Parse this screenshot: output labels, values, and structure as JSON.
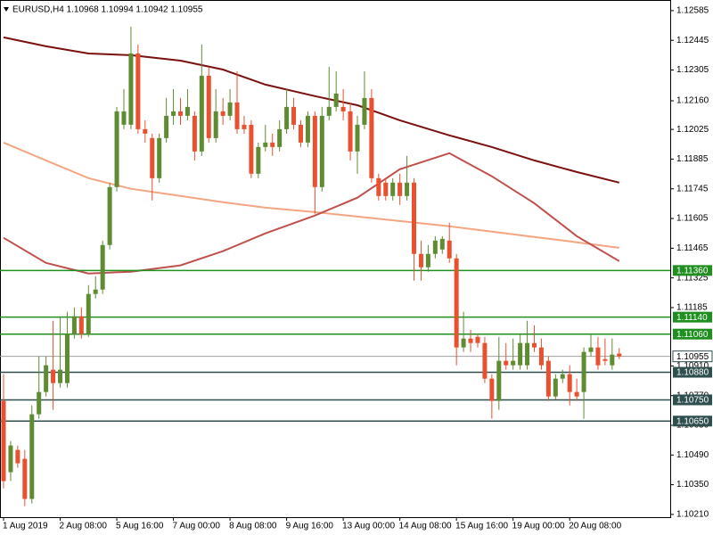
{
  "chart_data": {
    "type": "candlestick",
    "title": "EURUSD,H4  1.10968 1.10994 1.10942 1.10955",
    "categories": [
      "1 Aug 2019",
      null,
      null,
      null,
      null,
      null,
      null,
      null,
      "2 Aug 08:00",
      null,
      null,
      null,
      null,
      null,
      null,
      null,
      "5 Aug 16:00",
      null,
      null,
      null,
      null,
      null,
      null,
      null,
      "7 Aug 00:00",
      null,
      null,
      null,
      null,
      null,
      null,
      null,
      "8 Aug 08:00",
      null,
      null,
      null,
      null,
      null,
      null,
      null,
      "9 Aug 16:00",
      null,
      null,
      null,
      null,
      null,
      null,
      null,
      "13 Aug 00:00",
      null,
      null,
      null,
      null,
      null,
      null,
      null,
      "14 Aug 08:00",
      null,
      null,
      null,
      null,
      null,
      null,
      null,
      "15 Aug 16:00",
      null,
      null,
      null,
      null,
      null,
      null,
      null,
      "19 Aug 00:00",
      null,
      null,
      null,
      null,
      null,
      null,
      null,
      "20 Aug 08:00",
      null,
      null,
      null,
      null,
      null,
      null,
      null
    ],
    "open": [
      1.10745,
      1.10409,
      1.10514,
      1.10472,
      1.10283,
      1.10682,
      1.10787,
      1.10892,
      1.10829,
      1.10829,
      1.1106,
      1.11144,
      1.1106,
      1.11249,
      1.1127,
      1.1148,
      1.11753,
      1.12047,
      1.12047,
      1.12383,
      1.12026,
      1.11984,
      1.11795,
      1.11984,
      1.12089,
      1.1211,
      1.12089,
      1.12089,
      1.11921,
      1.12278,
      1.11984,
      1.1211,
      1.12089,
      1.12152,
      1.12047,
      1.12047,
      1.11816,
      1.11942,
      1.11963,
      1.11942,
      1.12026,
      1.12131,
      1.12047,
      1.11963,
      1.12089,
      1.11753,
      1.12089,
      1.12131,
      1.12131,
      1.1211,
      1.11921,
      1.12047,
      1.12173,
      1.11795,
      1.11774,
      1.11711,
      1.11774,
      1.11711,
      1.11774,
      1.11438,
      1.11375,
      1.11438,
      1.11459,
      1.11501,
      1.11417,
      1.10997,
      1.11039,
      1.11047,
      1.11018,
      1.1085,
      1.10745,
      1.10934,
      1.10913,
      1.10913,
      1.10913,
      1.11018,
      1.10997,
      1.10934,
      1.10766,
      1.1085,
      1.10871,
      1.10787,
      1.10787,
      1.10976,
      1.10997,
      1.10942,
      1.10913,
      1.10968
    ],
    "high": [
      1.10871,
      1.10556,
      1.10535,
      1.10514,
      1.10724,
      1.10955,
      1.10955,
      1.11123,
      1.11144,
      1.11165,
      1.11186,
      1.11186,
      1.11291,
      1.11333,
      1.11501,
      1.11774,
      1.12131,
      1.12215,
      1.12509,
      1.12425,
      1.12068,
      1.12005,
      1.12005,
      1.12173,
      1.12215,
      1.12173,
      1.12215,
      1.1211,
      1.12425,
      1.1232,
      1.12215,
      1.12173,
      1.12215,
      1.12299,
      1.12089,
      1.12068,
      1.11963,
      1.12047,
      1.12005,
      1.12068,
      1.12215,
      1.12173,
      1.12068,
      1.1211,
      1.1211,
      1.12131,
      1.1232,
      1.12299,
      1.12215,
      1.12152,
      1.12089,
      1.12299,
      1.12215,
      1.11816,
      1.11795,
      1.11795,
      1.11816,
      1.119,
      1.11795,
      1.11501,
      1.1148,
      1.11522,
      1.11522,
      1.11585,
      1.11438,
      1.11165,
      1.11081,
      1.1106,
      1.11047,
      1.10871,
      1.11047,
      1.11018,
      1.11039,
      1.1106,
      1.11123,
      1.11102,
      1.11039,
      1.10955,
      1.10871,
      1.10892,
      1.10913,
      1.1085,
      1.10997,
      1.1106,
      1.11047,
      1.11039,
      1.11039,
      1.10994
    ],
    "low": [
      1.10333,
      1.10367,
      1.1043,
      1.10249,
      1.10262,
      1.10661,
      1.10766,
      1.10703,
      1.10808,
      1.10808,
      1.11039,
      1.11039,
      1.11047,
      1.11228,
      1.11249,
      1.11459,
      1.11732,
      1.12026,
      1.12026,
      1.12005,
      1.11963,
      1.1169,
      1.11774,
      1.11963,
      1.12047,
      1.12047,
      1.12068,
      1.11879,
      1.119,
      1.11963,
      1.11963,
      1.12047,
      1.12068,
      1.12005,
      1.12005,
      1.11795,
      1.11795,
      1.11921,
      1.119,
      1.11921,
      1.12005,
      1.12026,
      1.11942,
      1.11942,
      1.11627,
      1.11732,
      1.12068,
      1.1211,
      1.12068,
      1.11879,
      1.11816,
      1.12026,
      1.11774,
      1.1169,
      1.1169,
      1.1169,
      1.11669,
      1.1169,
      1.11312,
      1.11312,
      1.11354,
      1.11417,
      1.11438,
      1.11396,
      1.10913,
      1.10976,
      1.10976,
      1.10997,
      1.10829,
      1.10661,
      1.10703,
      1.10892,
      1.10892,
      1.10892,
      1.10892,
      1.10976,
      1.10892,
      1.10745,
      1.10753,
      1.10829,
      1.10724,
      1.10745,
      1.10661,
      1.10955,
      1.10892,
      1.10913,
      1.10892,
      1.10942
    ],
    "close": [
      1.10367,
      1.10535,
      1.10451,
      1.10283,
      1.10682,
      1.10787,
      1.10913,
      1.10829,
      1.10892,
      1.1106,
      1.11144,
      1.1106,
      1.11249,
      1.1127,
      1.1148,
      1.11753,
      1.1211,
      1.1211,
      1.12383,
      1.12026,
      1.12005,
      1.11795,
      1.11984,
      1.12089,
      1.1211,
      1.12089,
      1.12131,
      1.11921,
      1.12278,
      1.11984,
      1.1211,
      1.12089,
      1.12152,
      1.12026,
      1.12026,
      1.11816,
      1.11942,
      1.11963,
      1.11942,
      1.12026,
      1.12131,
      1.12047,
      1.11963,
      1.12089,
      1.11753,
      1.12089,
      1.12131,
      1.12194,
      1.1211,
      1.11921,
      1.12047,
      1.12173,
      1.11795,
      1.11711,
      1.11711,
      1.11774,
      1.11711,
      1.11774,
      1.11438,
      1.11375,
      1.11438,
      1.11501,
      1.11509,
      1.11417,
      1.10997,
      1.11039,
      1.11018,
      1.11018,
      1.1085,
      1.10745,
      1.10934,
      1.10913,
      1.10934,
      1.11018,
      1.11018,
      1.10997,
      1.10913,
      1.10766,
      1.1085,
      1.10871,
      1.10787,
      1.10766,
      1.10976,
      1.10997,
      1.10913,
      1.10934,
      1.10963,
      1.10955
    ],
    "up_color": "#5f8c32",
    "down_color": "#e9502f",
    "lines": [
      {
        "color": "#7b1010",
        "x": [
          0,
          6,
          12,
          18,
          25,
          31,
          37,
          44,
          50,
          56,
          63,
          69,
          75,
          81,
          87
        ],
        "values": [
          1.12459,
          1.12417,
          1.12383,
          1.12375,
          1.12349,
          1.12307,
          1.12236,
          1.12182,
          1.12139,
          1.12068,
          1.11997,
          1.11942,
          1.11879,
          1.11824,
          1.11774
        ]
      },
      {
        "color": "#f4a582",
        "x": [
          0,
          6,
          12,
          18,
          25,
          31,
          37,
          44,
          50,
          56,
          63,
          69,
          75,
          81,
          87
        ],
        "values": [
          1.11963,
          1.11879,
          1.11795,
          1.11745,
          1.11711,
          1.11682,
          1.11656,
          1.11635,
          1.11614,
          1.11593,
          1.11568,
          1.11543,
          1.11518,
          1.11493,
          1.11467
        ]
      },
      {
        "color": "#c0504d",
        "x": [
          0,
          6,
          12,
          18,
          25,
          31,
          37,
          44,
          50,
          56,
          63,
          69,
          75,
          81,
          87
        ],
        "values": [
          1.11514,
          1.11396,
          1.11346,
          1.11354,
          1.11384,
          1.11451,
          1.11535,
          1.11619,
          1.11703,
          1.11837,
          1.11913,
          1.11804,
          1.11677,
          1.11522,
          1.11404
        ]
      }
    ],
    "levels": [
      {
        "value": 1.1136,
        "label": "1.11360",
        "color": "#1f8f1f"
      },
      {
        "value": 1.1114,
        "label": "1.11140",
        "color": "#1f8f1f"
      },
      {
        "value": 1.1106,
        "label": "1.11060",
        "color": "#1f8f1f"
      },
      {
        "value": 1.1088,
        "label": "1.10880",
        "color": "#2f4f4f"
      },
      {
        "value": 1.1075,
        "label": "1.10750",
        "color": "#2f4f4f"
      },
      {
        "value": 1.1065,
        "label": "1.10650",
        "color": "#2f4f4f"
      }
    ],
    "last_price": 1.10955,
    "ylim": [
      1.10197,
      1.12635
    ],
    "yticks": [
      1.12585,
      1.12445,
      1.12305,
      {
        "value": 1.1216,
        "label": "1.12160"
      },
      1.12025,
      1.11885,
      1.11745,
      1.11605,
      1.11465,
      1.11325,
      1.11185,
      {
        "value": 1.1091,
        "label": "1.10910"
      },
      {
        "value": 1.1077,
        "label": "1.10770"
      },
      {
        "value": 1.1063,
        "label": "1.10630"
      },
      {
        "value": 1.1049,
        "label": "1.10490"
      },
      {
        "value": 1.1035,
        "label": "1.10350"
      },
      {
        "value": 1.1021,
        "label": "1.10210"
      }
    ]
  }
}
